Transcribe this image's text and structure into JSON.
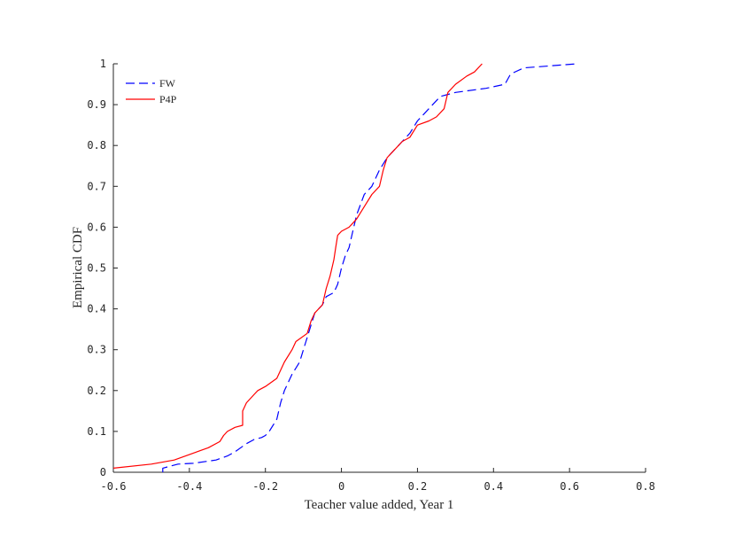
{
  "chart_data": {
    "type": "line",
    "xlabel": "Teacher value added, Year 1",
    "ylabel": "Empirical CDF",
    "xlim": [
      -0.6,
      0.8
    ],
    "ylim": [
      0,
      1
    ],
    "xticks": [
      -0.6,
      -0.4,
      -0.2,
      0,
      0.2,
      0.4,
      0.6,
      0.8
    ],
    "xtick_labels": [
      "-0.6",
      "-0.4",
      "-0.2",
      "0",
      "0.2",
      "0.4",
      "0.6",
      "0.8"
    ],
    "yticks": [
      0,
      0.1,
      0.2,
      0.3,
      0.4,
      0.5,
      0.6,
      0.7,
      0.8,
      0.9,
      1
    ],
    "ytick_labels": [
      "0",
      "0.1",
      "0.2",
      "0.3",
      "0.4",
      "0.5",
      "0.6",
      "0.7",
      "0.8",
      "0.9",
      "1"
    ],
    "grid": false,
    "legend": {
      "position": "top-left"
    },
    "series": [
      {
        "name": "FW",
        "color": "#0000ff",
        "style": "dashed",
        "points": [
          [
            -0.47,
            0.0
          ],
          [
            -0.47,
            0.01
          ],
          [
            -0.43,
            0.02
          ],
          [
            -0.39,
            0.022
          ],
          [
            -0.33,
            0.03
          ],
          [
            -0.3,
            0.04
          ],
          [
            -0.28,
            0.05
          ],
          [
            -0.25,
            0.07
          ],
          [
            -0.23,
            0.08
          ],
          [
            -0.21,
            0.085
          ],
          [
            -0.2,
            0.09
          ],
          [
            -0.19,
            0.1
          ],
          [
            -0.17,
            0.13
          ],
          [
            -0.16,
            0.17
          ],
          [
            -0.15,
            0.2
          ],
          [
            -0.13,
            0.24
          ],
          [
            -0.11,
            0.27
          ],
          [
            -0.1,
            0.3
          ],
          [
            -0.09,
            0.33
          ],
          [
            -0.08,
            0.36
          ],
          [
            -0.07,
            0.39
          ],
          [
            -0.05,
            0.41
          ],
          [
            -0.04,
            0.43
          ],
          [
            -0.02,
            0.44
          ],
          [
            -0.01,
            0.46
          ],
          [
            0.0,
            0.5
          ],
          [
            0.01,
            0.53
          ],
          [
            0.02,
            0.55
          ],
          [
            0.03,
            0.59
          ],
          [
            0.04,
            0.63
          ],
          [
            0.06,
            0.68
          ],
          [
            0.08,
            0.7
          ],
          [
            0.1,
            0.74
          ],
          [
            0.12,
            0.77
          ],
          [
            0.15,
            0.8
          ],
          [
            0.18,
            0.83
          ],
          [
            0.2,
            0.86
          ],
          [
            0.23,
            0.89
          ],
          [
            0.26,
            0.92
          ],
          [
            0.3,
            0.93
          ],
          [
            0.38,
            0.94
          ],
          [
            0.43,
            0.95
          ],
          [
            0.445,
            0.975
          ],
          [
            0.48,
            0.99
          ],
          [
            0.55,
            0.995
          ],
          [
            0.62,
            1.0
          ]
        ]
      },
      {
        "name": "P4P",
        "color": "#ff0000",
        "style": "solid",
        "points": [
          [
            -0.6,
            0.01
          ],
          [
            -0.5,
            0.02
          ],
          [
            -0.44,
            0.03
          ],
          [
            -0.41,
            0.04
          ],
          [
            -0.38,
            0.05
          ],
          [
            -0.35,
            0.06
          ],
          [
            -0.32,
            0.075
          ],
          [
            -0.31,
            0.09
          ],
          [
            -0.3,
            0.1
          ],
          [
            -0.28,
            0.11
          ],
          [
            -0.26,
            0.115
          ],
          [
            -0.26,
            0.15
          ],
          [
            -0.25,
            0.17
          ],
          [
            -0.23,
            0.19
          ],
          [
            -0.22,
            0.2
          ],
          [
            -0.2,
            0.21
          ],
          [
            -0.17,
            0.23
          ],
          [
            -0.16,
            0.25
          ],
          [
            -0.15,
            0.27
          ],
          [
            -0.13,
            0.3
          ],
          [
            -0.12,
            0.32
          ],
          [
            -0.09,
            0.34
          ],
          [
            -0.08,
            0.37
          ],
          [
            -0.07,
            0.39
          ],
          [
            -0.05,
            0.41
          ],
          [
            -0.04,
            0.45
          ],
          [
            -0.03,
            0.48
          ],
          [
            -0.02,
            0.52
          ],
          [
            -0.015,
            0.55
          ],
          [
            -0.01,
            0.58
          ],
          [
            0.0,
            0.59
          ],
          [
            0.02,
            0.6
          ],
          [
            0.04,
            0.62
          ],
          [
            0.06,
            0.65
          ],
          [
            0.08,
            0.68
          ],
          [
            0.1,
            0.7
          ],
          [
            0.11,
            0.74
          ],
          [
            0.12,
            0.77
          ],
          [
            0.14,
            0.79
          ],
          [
            0.16,
            0.81
          ],
          [
            0.18,
            0.82
          ],
          [
            0.2,
            0.85
          ],
          [
            0.23,
            0.86
          ],
          [
            0.25,
            0.87
          ],
          [
            0.27,
            0.89
          ],
          [
            0.28,
            0.93
          ],
          [
            0.3,
            0.95
          ],
          [
            0.33,
            0.97
          ],
          [
            0.35,
            0.98
          ],
          [
            0.37,
            1.0
          ]
        ]
      }
    ]
  }
}
